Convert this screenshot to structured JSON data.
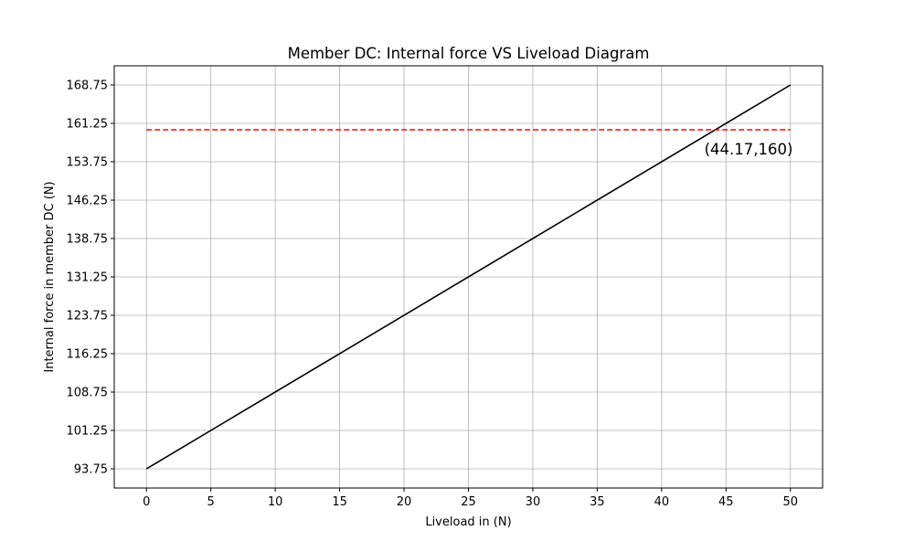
{
  "chart_data": {
    "type": "line",
    "title": "Member DC: Internal force VS Liveload Diagram",
    "xlabel": "Liveload in (N)",
    "ylabel": "Internal force in member DC (N)",
    "xlim": [
      -2.5,
      52.5
    ],
    "ylim": [
      90,
      172.5
    ],
    "x_ticks": [
      0,
      5,
      10,
      15,
      20,
      25,
      30,
      35,
      40,
      45,
      50
    ],
    "x_tick_labels": [
      "0",
      "5",
      "10",
      "15",
      "20",
      "25",
      "30",
      "35",
      "40",
      "45",
      "50"
    ],
    "y_ticks": [
      93.75,
      101.25,
      108.75,
      116.25,
      123.75,
      131.25,
      138.75,
      146.25,
      153.75,
      161.25,
      168.75
    ],
    "y_tick_labels": [
      "93.75",
      "101.25",
      "108.75",
      "116.25",
      "123.75",
      "131.25",
      "138.75",
      "146.25",
      "153.75",
      "161.25",
      "168.75"
    ],
    "grid": true,
    "series": [
      {
        "style": "solid",
        "color": "#000000",
        "x": [
          0,
          50
        ],
        "y": [
          93.75,
          168.75
        ]
      },
      {
        "style": "dashed",
        "color": "#ff0000",
        "x": [
          0,
          50
        ],
        "y": [
          160,
          160
        ]
      }
    ],
    "annotations": [
      {
        "text": "(44.17,160)",
        "x": 44.17,
        "y": 160
      }
    ]
  }
}
